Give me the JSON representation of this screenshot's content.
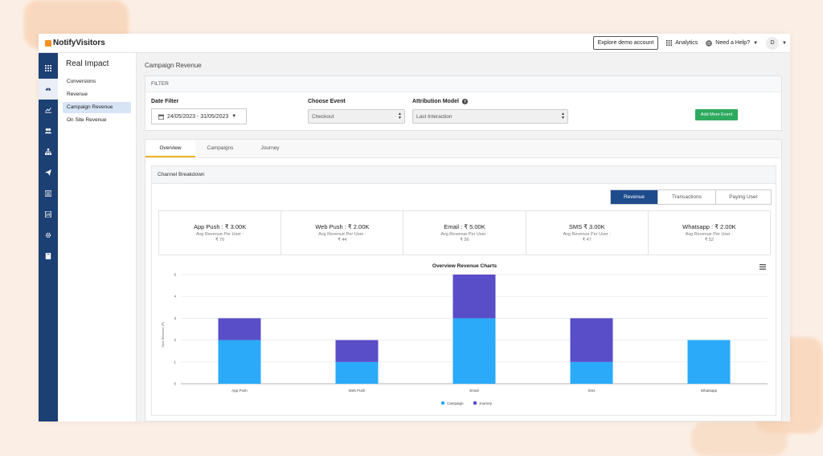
{
  "brand": {
    "name": "NotifyVisitors"
  },
  "topbar": {
    "demo_button": "Explore demo account",
    "analytics": "Analytics",
    "help": "Need a Help?",
    "avatar": "D"
  },
  "rail": [
    "grid-icon",
    "dashboard-icon",
    "chart-line-icon",
    "users-icon",
    "sitemap-icon",
    "send-icon",
    "list-icon",
    "report-icon",
    "gear-icon",
    "book-icon"
  ],
  "subnav": {
    "title": "Real Impact",
    "items": [
      "Conversions",
      "Revenue",
      "Campaign Revenue",
      "On Site Revenue"
    ],
    "active_index": 2
  },
  "page": {
    "title": "Campaign Revenue"
  },
  "filter": {
    "header": "FILTER",
    "date_label": "Date Filter",
    "date_value": "24/05/2023 - 31/05/2023",
    "event_label": "Choose Event",
    "event_value": "Checkout",
    "attribution_label": "Attribution Model",
    "attribution_value": "Last Interaction",
    "add_event": "Add More Event"
  },
  "tabs": [
    "Overview",
    "Campaigns",
    "Journey"
  ],
  "breakdown": {
    "title": "Channel Breakdown",
    "toggle": [
      "Revenue",
      "Transactions",
      "Paying User"
    ],
    "stats": [
      {
        "title": "App Push : ₹ 3.00K",
        "sub": "Avg Revenue Per User :",
        "value": "₹ 76"
      },
      {
        "title": "Web Push : ₹ 2.00K",
        "sub": "Avg Revenue Per User :",
        "value": "₹ 44"
      },
      {
        "title": "Email : ₹ 5.00K",
        "sub": "Avg Revenue Per User :",
        "value": "₹ 56"
      },
      {
        "title": "SMS ₹ 3.00K",
        "sub": "Avg Revenue Per User :",
        "value": "₹ 47"
      },
      {
        "title": "Whatsapp : ₹ 2.00K",
        "sub": "Avg Revenue Per User :",
        "value": "₹ 52"
      }
    ]
  },
  "colors": {
    "campaign": "#2aaaf8",
    "journey": "#5a4dc8",
    "accent": "#1e4b8c",
    "green": "#2eaa5e"
  },
  "chart_data": {
    "type": "bar",
    "title": "Overview Revenue Charts",
    "ylabel": "Total Revenue (₹)",
    "xlabel": "",
    "categories": [
      "App Push",
      "Web Push",
      "Email",
      "Sms",
      "Whatsapp"
    ],
    "series": [
      {
        "name": "Campaign",
        "values": [
          2,
          1,
          3,
          1,
          2
        ]
      },
      {
        "name": "Journey",
        "values": [
          1,
          1,
          2,
          2,
          0
        ]
      }
    ],
    "ylim": [
      0,
      5
    ],
    "yticks": [
      "0",
      "1",
      "2",
      "3",
      "4",
      "5"
    ],
    "legend": "bottom"
  }
}
